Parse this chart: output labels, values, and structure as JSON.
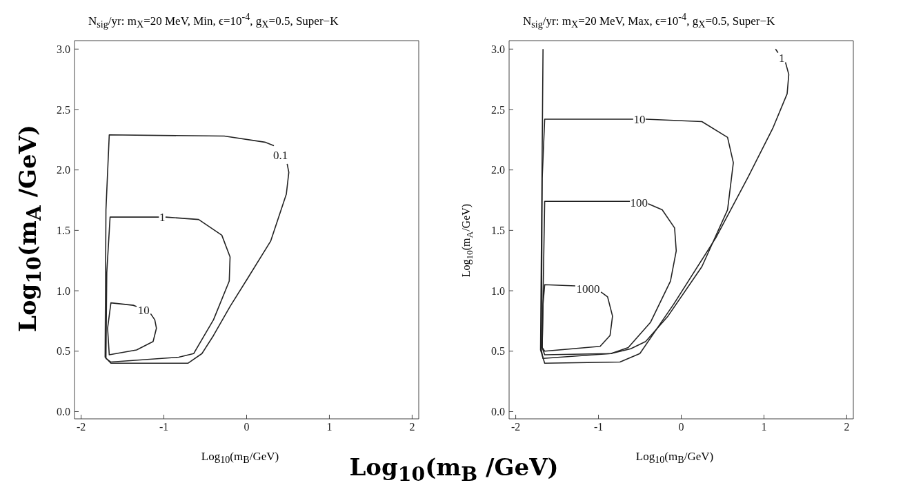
{
  "chart_data": [
    {
      "type": "line",
      "title": "N$_{sig}$/yr: m$_{X}$=20 MeV, Min, ϵ=10$^{-4}$, g$_{X}$=0.5, Super−K",
      "xlabel": "Log$_{10}$(m$_{B}$/GeV)",
      "ylabel": "Log$_{10}$(m$_{A}$ /GeV)",
      "annotations": [
        "Log$_{10}$(m$_{B}$ /GeV)"
      ],
      "xlim": [
        -2.08,
        2.08
      ],
      "ylim": [
        -0.06,
        3.07
      ],
      "xticks": [
        -2,
        -1,
        0,
        1,
        2
      ],
      "yticks": [
        {
          "value": 0,
          "label": "0.0"
        },
        0.5,
        {
          "value": 1,
          "label": "1.0"
        },
        1.5,
        {
          "value": 2,
          "label": "2.0"
        },
        2.5,
        {
          "value": 3,
          "label": "3.0"
        }
      ],
      "grid": false,
      "legend": false,
      "marker": "none",
      "line_style": "solid",
      "series": [
        {
          "name": "0.1",
          "color": "#222222",
          "x": [
            0.49,
            0.51,
            0.48,
            0.29,
            0.01,
            -0.2,
            -0.4,
            -0.54,
            -0.71,
            -1.64,
            -1.71,
            -1.7,
            -1.66,
            -0.27,
            0.22,
            0.33
          ],
          "values": [
            2.05,
            1.98,
            1.8,
            1.41,
            1.1,
            0.87,
            0.63,
            0.48,
            0.4,
            0.4,
            0.45,
            1.67,
            2.29,
            2.28,
            2.23,
            2.2
          ]
        },
        {
          "name": "1",
          "color": "#222222",
          "x": [
            -0.98,
            -0.58,
            -0.3,
            -0.2,
            -0.21,
            -0.4,
            -0.64,
            -0.82,
            -1.64,
            -1.7,
            -1.69,
            -1.65,
            -1.06
          ],
          "values": [
            1.61,
            1.59,
            1.46,
            1.28,
            1.08,
            0.76,
            0.48,
            0.45,
            0.41,
            0.44,
            1.15,
            1.61,
            1.61
          ]
        },
        {
          "name": "10",
          "color": "#222222",
          "x": [
            -1.16,
            -1.11,
            -1.09,
            -1.13,
            -1.33,
            -1.66,
            -1.68,
            -1.64,
            -1.37,
            -1.33
          ],
          "values": [
            0.81,
            0.76,
            0.69,
            0.58,
            0.51,
            0.47,
            0.69,
            0.9,
            0.88,
            0.87
          ]
        }
      ]
    },
    {
      "type": "line",
      "title": "N$_{sig}$/yr: m$_{X}$=20 MeV, Max, ϵ=10$^{-4}$, g$_{X}$=0.5, Super−K",
      "xlabel": "Log$_{10}$(m$_{B}$/GeV)",
      "ylabel": "Log$_{10}$(m$_{A}$/GeV)",
      "xlim": [
        -2.08,
        2.08
      ],
      "ylim": [
        -0.06,
        3.07
      ],
      "xticks": [
        -2,
        -1,
        0,
        1,
        2
      ],
      "yticks": [
        {
          "value": 0,
          "label": "0.0"
        },
        0.5,
        {
          "value": 1,
          "label": "1.0"
        },
        1.5,
        {
          "value": 2,
          "label": "2.0"
        },
        2.5,
        {
          "value": 3,
          "label": "3.0"
        }
      ],
      "grid": false,
      "legend": false,
      "marker": "none",
      "line_style": "solid",
      "series": [
        {
          "name": "1",
          "color": "#222222",
          "x": [
            -1.67,
            -1.7,
            -1.65,
            -0.74,
            -0.5,
            -0.09,
            0.42,
            0.8,
            1.11,
            1.28,
            1.3,
            1.26,
            1.2,
            1.17,
            1.14
          ],
          "values": [
            3.0,
            0.51,
            0.4,
            0.41,
            0.48,
            0.89,
            1.44,
            1.93,
            2.35,
            2.63,
            2.79,
            2.89,
            null,
            2.97,
            3.0
          ]
        },
        {
          "name": "10",
          "color": "#222222",
          "x": [
            -0.43,
            0.25,
            0.56,
            0.63,
            0.56,
            0.25,
            -0.16,
            -0.43,
            -0.61,
            -0.85,
            -1.67,
            -1.69,
            -1.68,
            -1.65,
            -0.58
          ],
          "values": [
            2.42,
            2.4,
            2.27,
            2.06,
            1.67,
            1.2,
            0.79,
            0.58,
            0.52,
            0.48,
            0.44,
            0.51,
            1.93,
            2.42,
            2.42
          ]
        },
        {
          "name": "100",
          "color": "#222222",
          "x": [
            -0.4,
            -0.23,
            -0.08,
            -0.06,
            -0.13,
            -0.37,
            -0.64,
            -0.85,
            -1.65,
            -1.68,
            -1.65,
            -0.62
          ],
          "values": [
            1.72,
            1.67,
            1.52,
            1.33,
            1.08,
            0.74,
            0.53,
            0.48,
            0.47,
            0.53,
            1.74,
            1.74
          ]
        },
        {
          "name": "1000",
          "color": "#222222",
          "x": [
            -0.97,
            -0.89,
            -0.83,
            -0.86,
            -0.98,
            -1.65,
            -1.68,
            -1.67,
            -1.65,
            -1.28
          ],
          "values": [
            0.99,
            0.95,
            0.79,
            0.63,
            0.54,
            0.5,
            0.53,
            0.89,
            1.05,
            1.04
          ]
        }
      ]
    }
  ]
}
